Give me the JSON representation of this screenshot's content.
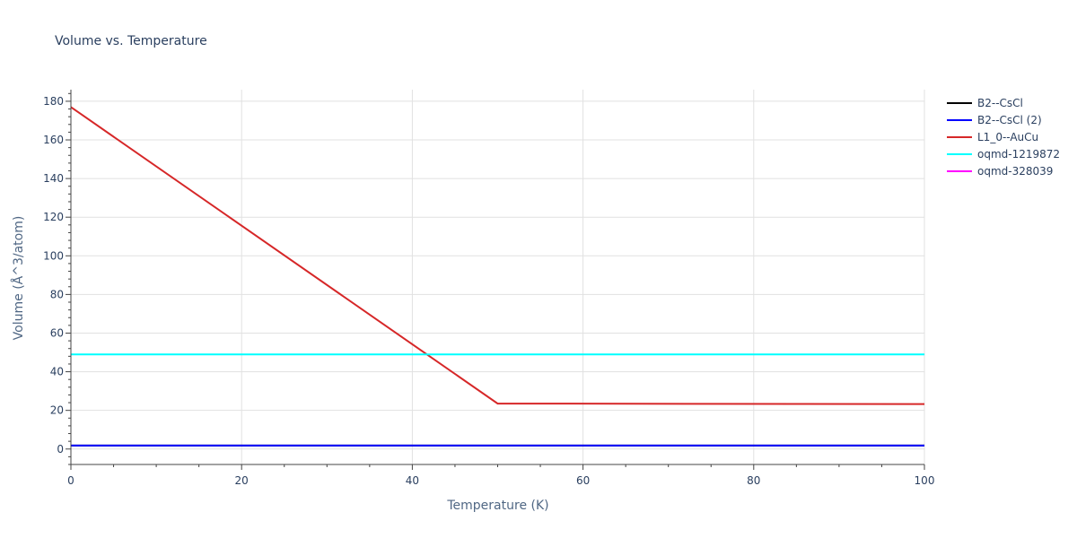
{
  "chart_data": {
    "type": "line",
    "title": "Volume vs. Temperature",
    "xlabel": "Temperature (K)",
    "ylabel": "Volume (Å^3/atom)",
    "xlim": [
      0,
      100
    ],
    "ylim": [
      -8,
      186
    ],
    "x_ticks": [
      0,
      20,
      40,
      60,
      80,
      100
    ],
    "y_ticks": [
      0,
      20,
      40,
      60,
      80,
      100,
      120,
      140,
      160,
      180
    ],
    "grid": true,
    "legend_position": "right",
    "series": [
      {
        "name": "B2--CsCl",
        "color": "#000000",
        "x": [
          0,
          100
        ],
        "y": [
          1.8,
          1.8
        ]
      },
      {
        "name": "B2--CsCl (2)",
        "color": "#0000ff",
        "x": [
          0,
          100
        ],
        "y": [
          1.8,
          1.8
        ]
      },
      {
        "name": "L1_0--AuCu",
        "color": "#d62728",
        "x": [
          0,
          50,
          100
        ],
        "y": [
          177,
          23.5,
          23.3
        ]
      },
      {
        "name": "oqmd-1219872",
        "color": "#00ffff",
        "x": [
          0,
          100
        ],
        "y": [
          49,
          49
        ]
      },
      {
        "name": "oqmd-328039",
        "color": "#ff00ff",
        "x": [],
        "y": []
      }
    ]
  }
}
